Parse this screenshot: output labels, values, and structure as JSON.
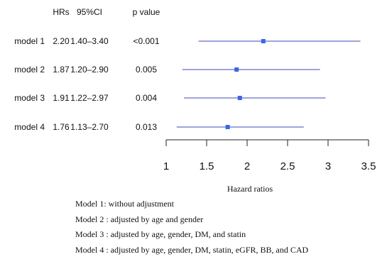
{
  "chart_data": {
    "type": "forest",
    "columns": [
      "HRs",
      "95%CI",
      "p value"
    ],
    "rows": [
      {
        "model": "model 1",
        "hr_text": "2.20",
        "ci_text": "1.40–3.40",
        "p_text": "<0.001",
        "hr": 2.2,
        "ci": [
          1.4,
          3.4
        ]
      },
      {
        "model": "model 2",
        "hr_text": "1.87",
        "ci_text": "1.20–2.90",
        "p_text": "0.005",
        "hr": 1.87,
        "ci": [
          1.2,
          2.9
        ]
      },
      {
        "model": "model 3",
        "hr_text": "1.91",
        "ci_text": "1.22–2.97",
        "p_text": "0.004",
        "hr": 1.91,
        "ci": [
          1.22,
          2.97
        ]
      },
      {
        "model": "model 4",
        "hr_text": "1.76",
        "ci_text": "1.13–2.70",
        "p_text": "0.013",
        "hr": 1.76,
        "ci": [
          1.13,
          2.7
        ]
      }
    ],
    "x_ticks": [
      "1",
      "1.5",
      "2",
      "2.5",
      "3",
      "3.5"
    ],
    "xlim": [
      1,
      3.5
    ],
    "xlabel": "Hazard ratios",
    "color": "#3d4ab8",
    "marker_color": "#3c66e0"
  },
  "footnotes": [
    "Model 1: without adjustment",
    "Model 2 : adjusted by age and gender",
    "Model 3 : adjusted by age, gender, DM, and statin",
    "Model 4 : adjusted by age, gender, DM, statin, eGFR, BB, and CAD"
  ]
}
